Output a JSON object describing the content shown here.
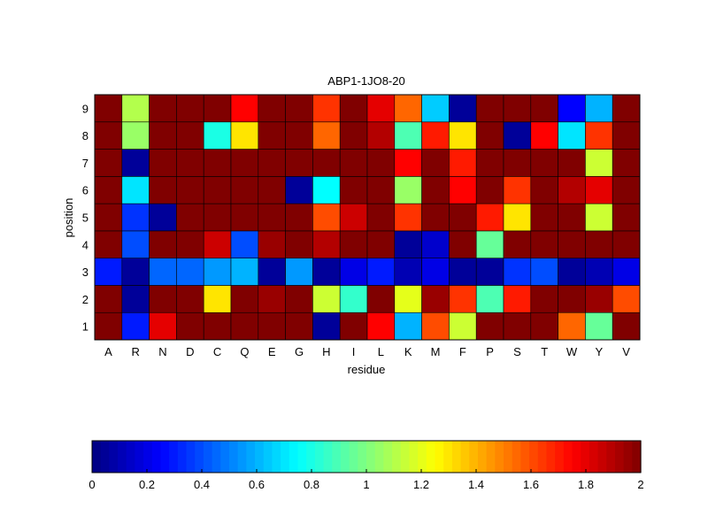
{
  "chart_data": {
    "type": "heatmap",
    "title": "ABP1-1JO8-20",
    "xlabel": "residue",
    "ylabel": "position",
    "x_categories": [
      "A",
      "R",
      "N",
      "D",
      "C",
      "Q",
      "E",
      "G",
      "H",
      "I",
      "L",
      "K",
      "M",
      "F",
      "P",
      "S",
      "T",
      "W",
      "Y",
      "V"
    ],
    "y_categories": [
      "1",
      "2",
      "3",
      "4",
      "5",
      "6",
      "7",
      "8",
      "9"
    ],
    "values": [
      [
        2.0,
        0.3,
        1.8,
        2.0,
        2.0,
        2.0,
        2.0,
        2.0,
        0.05,
        2.0,
        1.75,
        0.6,
        1.6,
        1.15,
        2.0,
        2.0,
        2.0,
        1.55,
        0.95,
        2.0
      ],
      [
        2.0,
        0.05,
        2.0,
        2.0,
        1.3,
        2.0,
        1.95,
        2.0,
        1.15,
        0.85,
        2.0,
        1.2,
        1.95,
        1.65,
        0.9,
        1.7,
        2.0,
        2.0,
        1.95,
        1.6
      ],
      [
        0.3,
        0.05,
        0.45,
        0.45,
        0.55,
        0.6,
        0.05,
        0.55,
        0.05,
        0.2,
        0.3,
        0.1,
        0.2,
        0.05,
        0.05,
        0.35,
        0.4,
        0.05,
        0.1,
        0.2
      ],
      [
        2.0,
        0.4,
        2.0,
        2.0,
        1.85,
        0.4,
        1.95,
        2.0,
        1.9,
        2.0,
        2.0,
        0.05,
        0.15,
        2.0,
        0.95,
        2.0,
        2.0,
        2.0,
        2.0,
        2.0
      ],
      [
        2.0,
        0.35,
        0.05,
        2.0,
        2.0,
        2.0,
        2.0,
        2.0,
        1.6,
        1.85,
        2.0,
        1.65,
        2.0,
        2.0,
        1.7,
        1.3,
        2.0,
        2.0,
        1.15,
        2.0
      ],
      [
        2.0,
        0.7,
        2.0,
        2.0,
        2.0,
        2.0,
        2.0,
        0.05,
        0.75,
        2.0,
        2.0,
        1.05,
        2.0,
        1.75,
        2.0,
        1.65,
        2.0,
        1.9,
        1.8,
        2.0
      ],
      [
        2.0,
        0.05,
        2.0,
        2.0,
        2.0,
        2.0,
        2.0,
        2.0,
        2.0,
        2.0,
        2.0,
        1.75,
        2.0,
        1.7,
        2.0,
        2.0,
        2.0,
        2.0,
        1.15,
        2.0
      ],
      [
        2.0,
        1.05,
        2.0,
        2.0,
        0.8,
        1.3,
        2.0,
        2.0,
        1.55,
        2.0,
        1.9,
        0.9,
        1.7,
        1.3,
        2.0,
        0.05,
        1.75,
        0.7,
        1.65,
        2.0
      ],
      [
        2.0,
        1.1,
        2.0,
        2.0,
        2.0,
        1.75,
        2.0,
        2.0,
        1.65,
        2.0,
        1.8,
        1.55,
        0.65,
        0.05,
        2.0,
        2.0,
        2.0,
        0.25,
        0.6,
        2.0
      ]
    ],
    "clim": [
      0,
      2
    ],
    "colormap": "jet",
    "grid": false,
    "colorbar": {
      "placement": "bottom",
      "ticks": [
        "0",
        "0.2",
        "0.4",
        "0.6",
        "0.8",
        "1",
        "1.2",
        "1.4",
        "1.6",
        "1.8",
        "2"
      ]
    }
  }
}
